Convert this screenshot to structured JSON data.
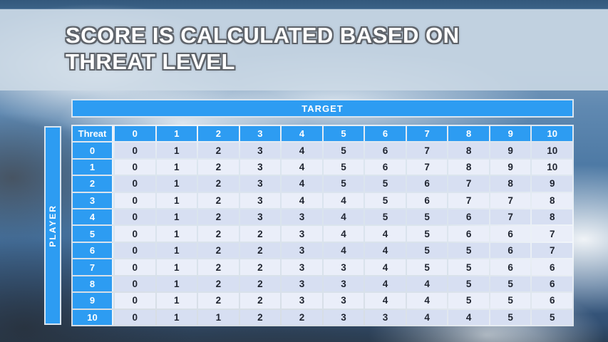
{
  "slide": {
    "title_line1": "SCORE IS CALCULATED BASED ON",
    "title_line2": "THREAT LEVEL"
  },
  "matrix": {
    "target_label": "TARGET",
    "player_label": "PLAYER",
    "corner_header": "Threat",
    "column_headers": [
      "0",
      "1",
      "2",
      "3",
      "4",
      "5",
      "6",
      "7",
      "8",
      "9",
      "10"
    ],
    "rows": [
      {
        "label": "0",
        "values": [
          "0",
          "1",
          "2",
          "3",
          "4",
          "5",
          "6",
          "7",
          "8",
          "9",
          "10"
        ]
      },
      {
        "label": "1",
        "values": [
          "0",
          "1",
          "2",
          "3",
          "4",
          "5",
          "6",
          "7",
          "8",
          "9",
          "10"
        ]
      },
      {
        "label": "2",
        "values": [
          "0",
          "1",
          "2",
          "3",
          "4",
          "5",
          "5",
          "6",
          "7",
          "8",
          "9"
        ]
      },
      {
        "label": "3",
        "values": [
          "0",
          "1",
          "2",
          "3",
          "4",
          "4",
          "5",
          "6",
          "7",
          "7",
          "8"
        ]
      },
      {
        "label": "4",
        "values": [
          "0",
          "1",
          "2",
          "3",
          "3",
          "4",
          "5",
          "5",
          "6",
          "7",
          "8"
        ]
      },
      {
        "label": "5",
        "values": [
          "0",
          "1",
          "2",
          "2",
          "3",
          "4",
          "4",
          "5",
          "6",
          "6",
          "7"
        ]
      },
      {
        "label": "6",
        "values": [
          "0",
          "1",
          "2",
          "2",
          "3",
          "4",
          "4",
          "5",
          "5",
          "6",
          "7"
        ]
      },
      {
        "label": "7",
        "values": [
          "0",
          "1",
          "2",
          "2",
          "3",
          "3",
          "4",
          "5",
          "5",
          "6",
          "6"
        ]
      },
      {
        "label": "8",
        "values": [
          "0",
          "1",
          "2",
          "2",
          "3",
          "3",
          "4",
          "4",
          "5",
          "5",
          "6"
        ]
      },
      {
        "label": "9",
        "values": [
          "0",
          "1",
          "2",
          "2",
          "3",
          "3",
          "4",
          "4",
          "5",
          "5",
          "6"
        ]
      },
      {
        "label": "10",
        "values": [
          "0",
          "1",
          "1",
          "2",
          "2",
          "3",
          "3",
          "4",
          "4",
          "5",
          "5"
        ]
      }
    ]
  },
  "chart_data": {
    "type": "table",
    "title": "Score matrix: player threat level (rows) vs target threat level (columns)",
    "row_axis": "PLAYER",
    "col_axis": "TARGET",
    "corner": "Threat",
    "columns": [
      0,
      1,
      2,
      3,
      4,
      5,
      6,
      7,
      8,
      9,
      10
    ],
    "rows": [
      0,
      1,
      2,
      3,
      4,
      5,
      6,
      7,
      8,
      9,
      10
    ],
    "values": [
      [
        0,
        1,
        2,
        3,
        4,
        5,
        6,
        7,
        8,
        9,
        10
      ],
      [
        0,
        1,
        2,
        3,
        4,
        5,
        6,
        7,
        8,
        9,
        10
      ],
      [
        0,
        1,
        2,
        3,
        4,
        5,
        5,
        6,
        7,
        8,
        9
      ],
      [
        0,
        1,
        2,
        3,
        4,
        4,
        5,
        6,
        7,
        7,
        8
      ],
      [
        0,
        1,
        2,
        3,
        3,
        4,
        5,
        5,
        6,
        7,
        8
      ],
      [
        0,
        1,
        2,
        2,
        3,
        4,
        4,
        5,
        6,
        6,
        7
      ],
      [
        0,
        1,
        2,
        2,
        3,
        4,
        4,
        5,
        5,
        6,
        7
      ],
      [
        0,
        1,
        2,
        2,
        3,
        3,
        4,
        5,
        5,
        6,
        6
      ],
      [
        0,
        1,
        2,
        2,
        3,
        3,
        4,
        4,
        5,
        5,
        6
      ],
      [
        0,
        1,
        2,
        2,
        3,
        3,
        4,
        4,
        5,
        5,
        6
      ],
      [
        0,
        1,
        1,
        2,
        2,
        3,
        3,
        4,
        4,
        5,
        5
      ]
    ]
  },
  "colors": {
    "accent_blue": "#2D9CF2",
    "row_even": "#D7DFF2",
    "row_odd": "#EAEEF9",
    "cell_text": "#1F2430",
    "header_text": "#FFFFFF"
  }
}
